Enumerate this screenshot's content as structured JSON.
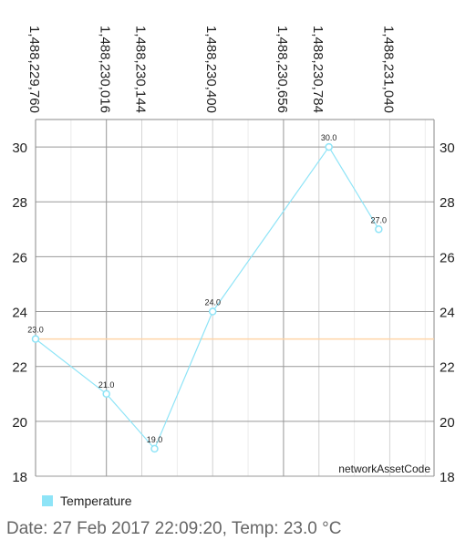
{
  "chart_data": {
    "type": "line",
    "x_ticks": [
      "1,488,229,760",
      "1,488,230,016",
      "1,488,230,144",
      "1,488,230,400",
      "1,488,230,656",
      "1,488,230,784",
      "1,488,231,040"
    ],
    "x_tick_values": [
      1488229760,
      1488230016,
      1488230144,
      1488230400,
      1488230656,
      1488230784,
      1488231040
    ],
    "xlim": [
      1488229760,
      1488231200
    ],
    "y_ticks": [
      "18",
      "20",
      "22",
      "24",
      "26",
      "28",
      "30"
    ],
    "ylim": [
      18,
      31
    ],
    "description_label": "networkAssetCode",
    "limit_line": 23.0,
    "series": [
      {
        "name": "Temperature",
        "x": [
          1488229760,
          1488230016,
          1488230190,
          1488230400,
          1488230820,
          1488231000
        ],
        "values": [
          23.0,
          21.0,
          19.0,
          24.0,
          30.0,
          27.0
        ],
        "value_labels": [
          "23.0",
          "21.0",
          "19.0",
          "24.0",
          "30.0",
          "27.0"
        ]
      }
    ],
    "grid": true,
    "legend_position": "bottom-left"
  },
  "colors": {
    "series": "#8ee4f7",
    "limit_line": "#ffd4a8",
    "grid": "#d6d6d6",
    "grid_major": "#999999",
    "axis": "#8a8a8a",
    "text": "#222222"
  },
  "status_text": "Date: 27 Feb 2017 22:09:20, Temp: 23.0 °C"
}
